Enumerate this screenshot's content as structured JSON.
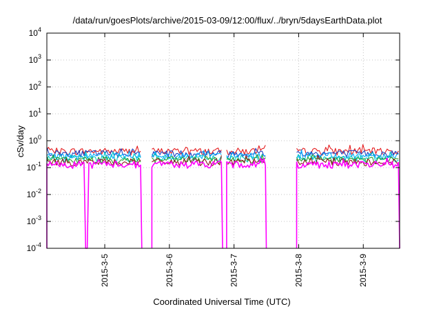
{
  "chart_data": {
    "type": "line",
    "title": "/data/run/goesPlots/archive/2015-03-09/12:00/flux/../bryn/5daysEarthData.plot",
    "xlabel": "Coordinated Universal Time (UTC)",
    "ylabel": "cSv/day",
    "y_scale": "log",
    "ylim": [
      0.0001,
      10000
    ],
    "y_ticks": [
      {
        "value": 0.0001,
        "base": "10",
        "exp": "-4"
      },
      {
        "value": 0.001,
        "base": "10",
        "exp": "-3"
      },
      {
        "value": 0.01,
        "base": "10",
        "exp": "-2"
      },
      {
        "value": 0.1,
        "base": "10",
        "exp": "-1"
      },
      {
        "value": 1,
        "base": "10",
        "exp": "0"
      },
      {
        "value": 10,
        "base": "10",
        "exp": "1"
      },
      {
        "value": 100,
        "base": "10",
        "exp": "2"
      },
      {
        "value": 1000,
        "base": "10",
        "exp": "3"
      },
      {
        "value": 10000,
        "base": "10",
        "exp": "4"
      }
    ],
    "x_range_days": [
      "2015-03-04 02:30",
      "2015-03-09 13:30"
    ],
    "x_ticks": [
      "2015-3-5",
      "2015-3-6",
      "2015-3-7",
      "2015-3-8",
      "2015-3-9"
    ],
    "grid": true,
    "data_gaps": [
      [
        "2015-03-05 13:45",
        "2015-03-05 17:30"
      ],
      [
        "2015-03-06 19:45",
        "2015-03-06 21:15"
      ],
      [
        "2015-03-07 12:00",
        "2015-03-07 23:15"
      ]
    ],
    "dropouts": [
      "2015-03-04 17:15"
    ],
    "series": [
      {
        "color": "#e41a1c",
        "level": 0.4
      },
      {
        "color": "#1f3fbf",
        "level": 0.33
      },
      {
        "color": "#00aaff",
        "level": 0.27
      },
      {
        "color": "#00c8c8",
        "level": 0.22
      },
      {
        "color": "#2ca02c",
        "level": 0.19
      },
      {
        "color": "#8b1a1a",
        "level": 0.16
      },
      {
        "color": "#ff00ff",
        "level": 0.13
      }
    ]
  }
}
